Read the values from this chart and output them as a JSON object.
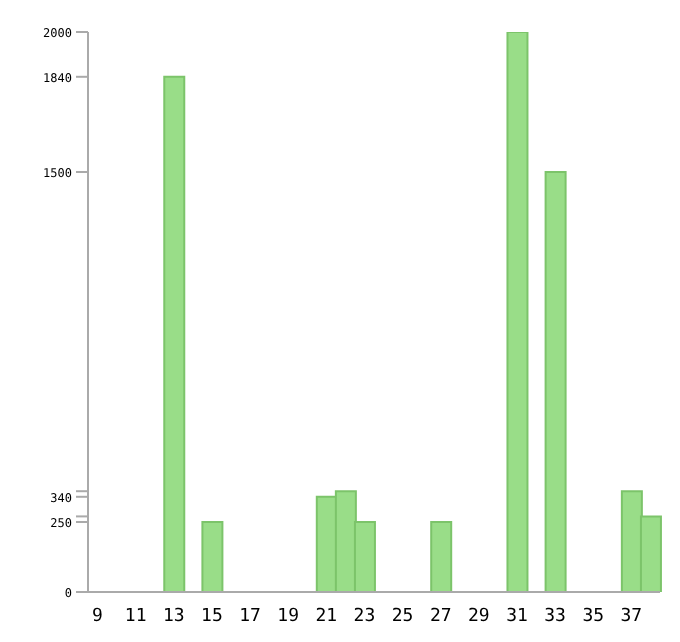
{
  "chart_data": {
    "type": "bar",
    "categories": [
      "9",
      null,
      "11",
      null,
      "13",
      null,
      "15",
      null,
      "17",
      null,
      "19",
      null,
      "21",
      null,
      "23",
      null,
      "25",
      null,
      "27",
      null,
      "29",
      null,
      "31",
      null,
      "33",
      null,
      "35",
      null,
      "37",
      null
    ],
    "values": [
      0,
      0,
      0,
      0,
      1840,
      0,
      250,
      0,
      0,
      0,
      0,
      0,
      340,
      360,
      250,
      0,
      0,
      0,
      250,
      0,
      0,
      0,
      2000,
      0,
      1500,
      0,
      0,
      0,
      360,
      270
    ],
    "color": "#99dd88",
    "ylim": [
      0,
      2000
    ],
    "yticks": [
      0,
      250,
      {
        "value": 270,
        "label": null
      },
      340,
      {
        "value": 360,
        "label": null
      },
      1500,
      1840,
      2000
    ]
  }
}
